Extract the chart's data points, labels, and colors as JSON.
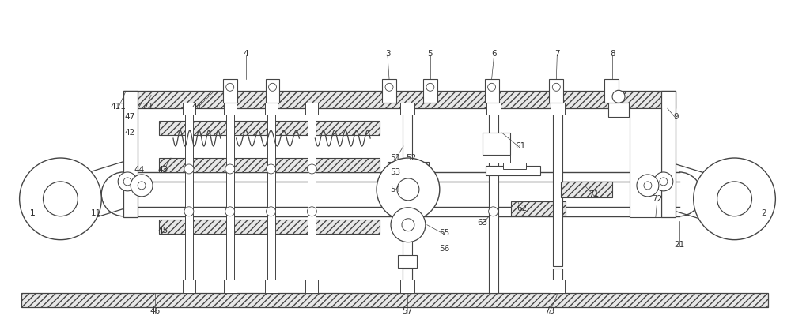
{
  "fig_width": 10.0,
  "fig_height": 4.09,
  "dpi": 100,
  "bg_color": "#ffffff",
  "lc": "#444444",
  "hatch_fc": "#e8e8e8",
  "label_fs": 7.5,
  "label_color": "#333333"
}
